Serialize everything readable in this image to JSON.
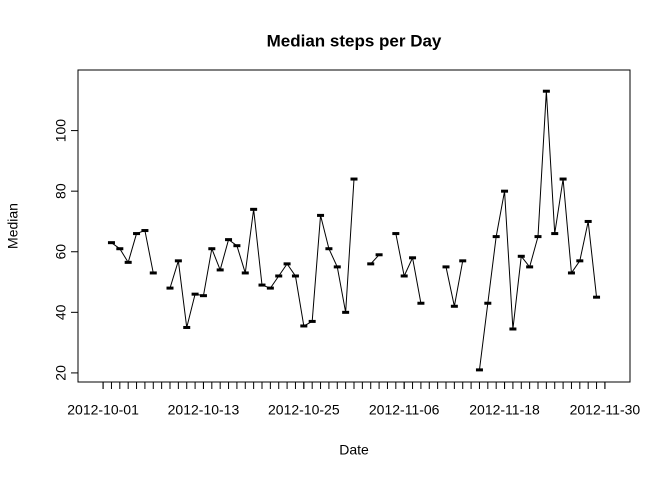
{
  "chart_data": {
    "type": "line",
    "title": "Median steps per Day",
    "x_label": "Date",
    "y_label": "Median",
    "x": [
      "2012-10-01",
      "2012-10-02",
      "2012-10-03",
      "2012-10-04",
      "2012-10-05",
      "2012-10-06",
      "2012-10-07",
      "2012-10-08",
      "2012-10-09",
      "2012-10-10",
      "2012-10-11",
      "2012-10-12",
      "2012-10-13",
      "2012-10-14",
      "2012-10-15",
      "2012-10-16",
      "2012-10-17",
      "2012-10-18",
      "2012-10-19",
      "2012-10-20",
      "2012-10-21",
      "2012-10-22",
      "2012-10-23",
      "2012-10-24",
      "2012-10-25",
      "2012-10-26",
      "2012-10-27",
      "2012-10-28",
      "2012-10-29",
      "2012-10-30",
      "2012-10-31",
      "2012-11-01",
      "2012-11-02",
      "2012-11-03",
      "2012-11-04",
      "2012-11-05",
      "2012-11-06",
      "2012-11-07",
      "2012-11-08",
      "2012-11-09",
      "2012-11-10",
      "2012-11-11",
      "2012-11-12",
      "2012-11-13",
      "2012-11-14",
      "2012-11-15",
      "2012-11-16",
      "2012-11-17",
      "2012-11-18",
      "2012-11-19",
      "2012-11-20",
      "2012-11-21",
      "2012-11-22",
      "2012-11-23",
      "2012-11-24",
      "2012-11-25",
      "2012-11-26",
      "2012-11-27",
      "2012-11-28",
      "2012-11-29",
      "2012-11-30"
    ],
    "values": [
      null,
      63,
      61,
      56.5,
      66,
      67,
      53,
      null,
      48,
      57,
      35,
      46,
      45.5,
      61,
      54,
      64,
      62,
      53,
      74,
      49,
      48,
      52,
      56,
      52,
      35.5,
      37,
      72,
      61,
      55,
      40,
      84,
      null,
      56,
      59,
      null,
      66,
      52,
      58,
      43,
      null,
      null,
      55,
      42,
      57,
      null,
      21,
      43,
      65,
      80,
      34.5,
      58.5,
      55,
      65,
      113,
      66,
      84,
      53,
      57,
      70,
      45,
      null
    ],
    "color": "#000000",
    "xlim": [
      "2012-09-28",
      "2012-12-03"
    ],
    "xticks": [
      "2012-10-01",
      "2012-10-13",
      "2012-10-25",
      "2012-11-06",
      "2012-11-18",
      "2012-11-30"
    ],
    "xminorticks": [
      "2012-10-01",
      "2012-10-02",
      "2012-10-03",
      "2012-10-04",
      "2012-10-05",
      "2012-10-06",
      "2012-10-07",
      "2012-10-08",
      "2012-10-09",
      "2012-10-10",
      "2012-10-11",
      "2012-10-12",
      "2012-10-13",
      "2012-10-14",
      "2012-10-15",
      "2012-10-16",
      "2012-10-17",
      "2012-10-18",
      "2012-10-19",
      "2012-10-20",
      "2012-10-21",
      "2012-10-22",
      "2012-10-23",
      "2012-10-24",
      "2012-10-25",
      "2012-10-26",
      "2012-10-27",
      "2012-10-28",
      "2012-10-29",
      "2012-10-30",
      "2012-10-31",
      "2012-11-01",
      "2012-11-02",
      "2012-11-03",
      "2012-11-04",
      "2012-11-05",
      "2012-11-06",
      "2012-11-07",
      "2012-11-08",
      "2012-11-09",
      "2012-11-10",
      "2012-11-11",
      "2012-11-12",
      "2012-11-13",
      "2012-11-14",
      "2012-11-15",
      "2012-11-16",
      "2012-11-17",
      "2012-11-18",
      "2012-11-19",
      "2012-11-20",
      "2012-11-21",
      "2012-11-22",
      "2012-11-23",
      "2012-11-24",
      "2012-11-25",
      "2012-11-26",
      "2012-11-27",
      "2012-11-28",
      "2012-11-29",
      "2012-11-30"
    ],
    "ylim": [
      17,
      120
    ],
    "yticks": [
      20,
      40,
      60,
      80,
      100
    ],
    "grid": false
  }
}
